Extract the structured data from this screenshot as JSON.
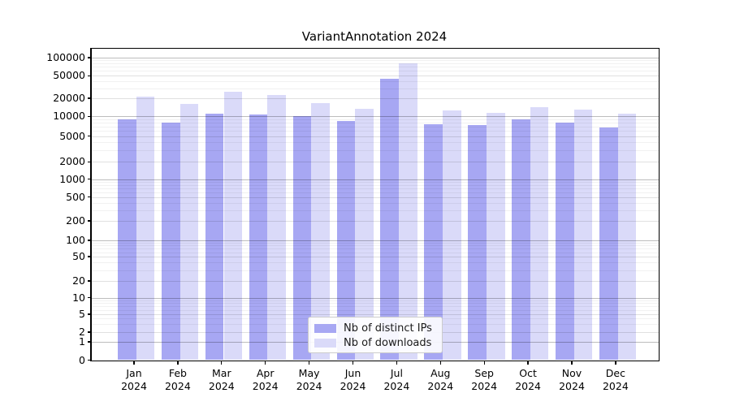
{
  "title": "VariantAnnotation 2024",
  "chart_data": {
    "type": "bar",
    "title": "VariantAnnotation 2024",
    "x": {
      "months": [
        "Jan",
        "Feb",
        "Mar",
        "Apr",
        "May",
        "Jun",
        "Jul",
        "Aug",
        "Sep",
        "Oct",
        "Nov",
        "Dec"
      ],
      "year": "2024"
    },
    "series": [
      {
        "name": "Nb of distinct IPs",
        "color": "#a7a7f3",
        "values": [
          9000,
          8100,
          11000,
          10900,
          10100,
          8500,
          44000,
          7600,
          7300,
          8900,
          8000,
          6700
        ]
      },
      {
        "name": "Nb of downloads",
        "color": "#dadaf9",
        "values": [
          21400,
          16000,
          26300,
          23000,
          16700,
          13500,
          81000,
          12400,
          11500,
          14200,
          12900,
          11200
        ]
      }
    ],
    "y_axis": {
      "scale": "symlog",
      "ticks": [
        0,
        1,
        2,
        5,
        10,
        20,
        50,
        100,
        200,
        500,
        1000,
        2000,
        5000,
        10000,
        20000,
        50000,
        100000
      ],
      "range_top": 140000
    },
    "legend": {
      "position": "lower center"
    },
    "grid": true
  }
}
